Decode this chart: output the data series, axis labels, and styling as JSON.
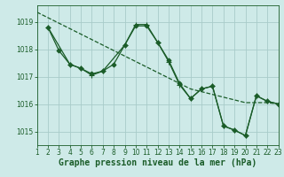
{
  "background_color": "#ceeae8",
  "grid_color": "#a8ccc9",
  "line_color": "#1a5c28",
  "xlabel": "Graphe pression niveau de la mer (hPa)",
  "xlabel_fontsize": 7,
  "tick_fontsize": 5.5,
  "ylim": [
    1014.5,
    1019.6
  ],
  "yticks": [
    1015,
    1016,
    1017,
    1018,
    1019
  ],
  "xlim": [
    1,
    23
  ],
  "xticks": [
    1,
    2,
    3,
    4,
    5,
    6,
    7,
    8,
    9,
    10,
    11,
    12,
    13,
    14,
    15,
    16,
    17,
    18,
    19,
    20,
    21,
    22,
    23
  ],
  "series": [
    {
      "x": [
        1,
        2,
        3,
        4,
        5,
        6,
        7,
        8,
        9,
        10,
        11,
        12,
        13,
        14,
        15,
        16,
        17,
        18,
        19,
        20,
        21,
        22,
        23
      ],
      "y": [
        1019.35,
        1019.15,
        1018.95,
        1018.75,
        1018.55,
        1018.35,
        1018.15,
        1017.95,
        1017.75,
        1017.55,
        1017.35,
        1017.15,
        1016.95,
        1016.75,
        1016.55,
        1016.45,
        1016.35,
        1016.25,
        1016.15,
        1016.05,
        1016.05,
        1016.05,
        1016.0
      ],
      "marker": "None",
      "markersize": 0,
      "linewidth": 0.9,
      "linestyle": "--"
    },
    {
      "x": [
        2,
        3,
        4,
        5,
        6,
        7,
        8,
        9,
        10,
        11,
        12,
        13,
        14,
        15,
        16,
        17,
        18,
        19,
        20,
        21,
        22,
        23
      ],
      "y": [
        1018.8,
        1017.95,
        1017.45,
        1017.3,
        1017.1,
        1017.2,
        1017.45,
        1018.15,
        1018.85,
        1018.85,
        1018.25,
        1017.6,
        1016.75,
        1016.2,
        1016.55,
        1016.65,
        1015.2,
        1015.05,
        1014.85,
        1016.3,
        1016.1,
        1016.0
      ],
      "marker": "D",
      "markersize": 2.5,
      "linewidth": 0.9,
      "linestyle": "-"
    },
    {
      "x": [
        2,
        4,
        5,
        6,
        7,
        9,
        10,
        11,
        12,
        13,
        14,
        15,
        16,
        17,
        18,
        19,
        20,
        21,
        22,
        23
      ],
      "y": [
        1018.8,
        1017.45,
        1017.3,
        1017.05,
        1017.2,
        1018.15,
        1018.9,
        1018.9,
        1018.25,
        1017.55,
        1016.7,
        1016.2,
        1016.55,
        1016.65,
        1015.2,
        1015.05,
        1014.85,
        1016.3,
        1016.1,
        1016.0
      ],
      "marker": "+",
      "markersize": 4.5,
      "linewidth": 0.9,
      "linestyle": "-"
    }
  ]
}
